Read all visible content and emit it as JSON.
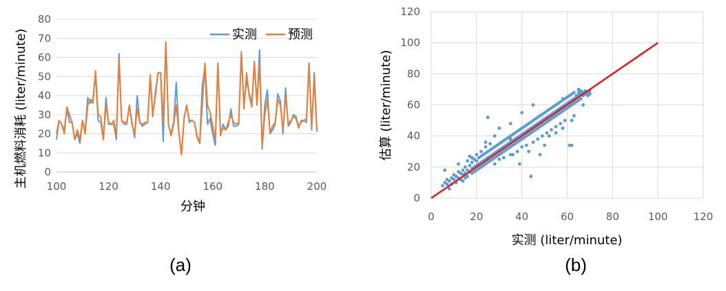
{
  "chart_data": [
    {
      "type": "line",
      "caption": "(a)",
      "xlabel": "分钟",
      "ylabel": "主机燃料消耗  (liter/minute)",
      "xlim": [
        100,
        200
      ],
      "ylim": [
        0,
        80
      ],
      "xticks": [
        100,
        120,
        140,
        160,
        180,
        200
      ],
      "yticks": [
        0,
        10,
        20,
        30,
        40,
        50,
        60,
        70,
        80
      ],
      "legend_position": "top-right",
      "grid": "horizontal",
      "x": [
        100,
        101,
        102,
        103,
        104,
        105,
        106,
        107,
        108,
        109,
        110,
        111,
        112,
        113,
        114,
        115,
        116,
        117,
        118,
        119,
        120,
        121,
        122,
        123,
        124,
        125,
        126,
        127,
        128,
        129,
        130,
        131,
        132,
        133,
        134,
        135,
        136,
        137,
        138,
        139,
        140,
        141,
        142,
        143,
        144,
        145,
        146,
        147,
        148,
        149,
        150,
        151,
        152,
        153,
        154,
        155,
        156,
        157,
        158,
        159,
        160,
        161,
        162,
        163,
        164,
        165,
        166,
        167,
        168,
        169,
        170,
        171,
        172,
        173,
        174,
        175,
        176,
        177,
        178,
        179,
        180,
        181,
        182,
        183,
        184,
        185,
        186,
        187,
        188,
        189,
        190,
        191,
        192,
        193,
        194,
        195,
        196,
        197,
        198,
        199,
        200
      ],
      "series": [
        {
          "name": "实测",
          "color": "#5B9BD5",
          "values": [
            17,
            27,
            25,
            22,
            33,
            26,
            26,
            17,
            20,
            15,
            27,
            21,
            39,
            36,
            38,
            51,
            27,
            26,
            17,
            39,
            25,
            25,
            25,
            17,
            62,
            27,
            25,
            25,
            35,
            26,
            18,
            40,
            26,
            24,
            25,
            26,
            49,
            29,
            42,
            52,
            52,
            16,
            68,
            25,
            20,
            26,
            47,
            21,
            9,
            28,
            35,
            26,
            27,
            26,
            18,
            15,
            45,
            55,
            25,
            28,
            20,
            14,
            57,
            19,
            25,
            22,
            24,
            33,
            24,
            24,
            25,
            63,
            35,
            48,
            41,
            36,
            58,
            35,
            64,
            12,
            35,
            43,
            20,
            22,
            25,
            41,
            37,
            20,
            44,
            24,
            26,
            30,
            29,
            24,
            26,
            27,
            26,
            57,
            22,
            52,
            22
          ]
        },
        {
          "name": "预测",
          "color": "#ED7D31",
          "values": [
            20,
            27,
            25,
            20,
            34,
            30,
            26,
            17,
            22,
            17,
            27,
            20,
            35,
            38,
            36,
            53,
            30,
            29,
            17,
            35,
            26,
            25,
            27,
            19,
            59,
            27,
            26,
            26,
            35,
            25,
            20,
            33,
            26,
            25,
            26,
            26,
            51,
            30,
            40,
            52,
            52,
            26,
            68,
            25,
            19,
            25,
            35,
            21,
            9,
            28,
            35,
            27,
            27,
            26,
            19,
            15,
            35,
            57,
            35,
            31,
            24,
            17,
            57,
            20,
            23,
            22,
            26,
            30,
            26,
            25,
            26,
            62,
            33,
            52,
            40,
            34,
            57,
            36,
            57,
            13,
            30,
            38,
            21,
            24,
            26,
            38,
            35,
            22,
            40,
            25,
            27,
            29,
            28,
            23,
            27,
            27,
            28,
            57,
            24,
            49,
            21
          ]
        }
      ]
    },
    {
      "type": "scatter",
      "caption": "(b)",
      "xlabel": "实测  (liter/minute)",
      "ylabel": "估算  (liter/minute)",
      "xlim": [
        0,
        120
      ],
      "ylim": [
        0,
        120
      ],
      "xticks": [
        0,
        20,
        40,
        60,
        80,
        100,
        120
      ],
      "yticks": [
        0,
        20,
        40,
        60,
        80,
        100,
        120
      ],
      "grid": "both",
      "point_color": "#5B9BD5",
      "reference_line": {
        "x": [
          0,
          100
        ],
        "y": [
          0,
          100
        ],
        "color": "#E31A1C"
      },
      "points": [
        [
          5,
          8
        ],
        [
          6,
          10
        ],
        [
          6,
          18
        ],
        [
          7,
          9
        ],
        [
          7,
          12
        ],
        [
          8,
          11
        ],
        [
          8,
          6
        ],
        [
          9,
          13
        ],
        [
          9,
          9
        ],
        [
          10,
          12
        ],
        [
          10,
          15
        ],
        [
          11,
          10
        ],
        [
          11,
          14
        ],
        [
          12,
          13
        ],
        [
          12,
          17
        ],
        [
          12,
          22
        ],
        [
          13,
          12
        ],
        [
          13,
          16
        ],
        [
          14,
          15
        ],
        [
          14,
          18
        ],
        [
          14,
          11
        ],
        [
          15,
          16
        ],
        [
          15,
          20
        ],
        [
          15,
          13
        ],
        [
          16,
          18
        ],
        [
          16,
          24
        ],
        [
          16,
          14
        ],
        [
          17,
          17
        ],
        [
          17,
          21
        ],
        [
          17,
          27
        ],
        [
          18,
          19
        ],
        [
          18,
          23
        ],
        [
          18,
          16
        ],
        [
          19,
          20
        ],
        [
          19,
          25
        ],
        [
          19,
          17
        ],
        [
          20,
          21
        ],
        [
          20,
          24
        ],
        [
          20,
          28
        ],
        [
          20,
          18
        ],
        [
          21,
          22
        ],
        [
          21,
          26
        ],
        [
          21,
          19
        ],
        [
          22,
          23
        ],
        [
          22,
          27
        ],
        [
          22,
          20
        ],
        [
          22,
          30
        ],
        [
          23,
          24
        ],
        [
          23,
          28
        ],
        [
          23,
          21
        ],
        [
          24,
          25
        ],
        [
          24,
          29
        ],
        [
          24,
          22
        ],
        [
          24,
          33
        ],
        [
          25,
          26
        ],
        [
          25,
          30
        ],
        [
          25,
          23
        ],
        [
          25,
          52
        ],
        [
          26,
          27
        ],
        [
          26,
          31
        ],
        [
          26,
          24
        ],
        [
          26,
          35
        ],
        [
          27,
          28
        ],
        [
          27,
          32
        ],
        [
          27,
          25
        ],
        [
          28,
          29
        ],
        [
          28,
          33
        ],
        [
          28,
          26
        ],
        [
          28,
          22
        ],
        [
          29,
          30
        ],
        [
          29,
          34
        ],
        [
          29,
          27
        ],
        [
          30,
          31
        ],
        [
          30,
          35
        ],
        [
          30,
          28
        ],
        [
          30,
          25
        ],
        [
          31,
          32
        ],
        [
          31,
          36
        ],
        [
          31,
          29
        ],
        [
          32,
          33
        ],
        [
          32,
          37
        ],
        [
          32,
          30
        ],
        [
          32,
          26
        ],
        [
          33,
          34
        ],
        [
          33,
          38
        ],
        [
          33,
          31
        ],
        [
          34,
          35
        ],
        [
          34,
          39
        ],
        [
          34,
          32
        ],
        [
          35,
          36
        ],
        [
          35,
          40
        ],
        [
          35,
          33
        ],
        [
          35,
          28
        ],
        [
          36,
          37
        ],
        [
          36,
          41
        ],
        [
          36,
          34
        ],
        [
          37,
          38
        ],
        [
          37,
          42
        ],
        [
          37,
          35
        ],
        [
          38,
          39
        ],
        [
          38,
          43
        ],
        [
          38,
          36
        ],
        [
          38,
          30
        ],
        [
          39,
          40
        ],
        [
          39,
          44
        ],
        [
          39,
          37
        ],
        [
          40,
          41
        ],
        [
          40,
          45
        ],
        [
          40,
          38
        ],
        [
          40,
          33
        ],
        [
          41,
          42
        ],
        [
          41,
          46
        ],
        [
          41,
          39
        ],
        [
          42,
          43
        ],
        [
          42,
          47
        ],
        [
          42,
          40
        ],
        [
          42,
          34
        ],
        [
          43,
          44
        ],
        [
          43,
          48
        ],
        [
          43,
          41
        ],
        [
          44,
          45
        ],
        [
          44,
          49
        ],
        [
          44,
          42
        ],
        [
          44,
          14
        ],
        [
          45,
          46
        ],
        [
          45,
          50
        ],
        [
          45,
          43
        ],
        [
          45,
          36
        ],
        [
          46,
          47
        ],
        [
          46,
          51
        ],
        [
          46,
          44
        ],
        [
          47,
          48
        ],
        [
          47,
          52
        ],
        [
          47,
          45
        ],
        [
          47,
          38
        ],
        [
          48,
          49
        ],
        [
          48,
          53
        ],
        [
          48,
          46
        ],
        [
          49,
          50
        ],
        [
          49,
          54
        ],
        [
          49,
          47
        ],
        [
          49,
          40
        ],
        [
          50,
          51
        ],
        [
          50,
          55
        ],
        [
          50,
          48
        ],
        [
          51,
          52
        ],
        [
          51,
          56
        ],
        [
          51,
          49
        ],
        [
          51,
          42
        ],
        [
          52,
          53
        ],
        [
          52,
          57
        ],
        [
          52,
          50
        ],
        [
          53,
          54
        ],
        [
          53,
          58
        ],
        [
          53,
          51
        ],
        [
          53,
          44
        ],
        [
          54,
          55
        ],
        [
          54,
          59
        ],
        [
          54,
          52
        ],
        [
          55,
          56
        ],
        [
          55,
          60
        ],
        [
          55,
          53
        ],
        [
          55,
          46
        ],
        [
          56,
          57
        ],
        [
          56,
          61
        ],
        [
          56,
          54
        ],
        [
          57,
          58
        ],
        [
          57,
          62
        ],
        [
          57,
          55
        ],
        [
          57,
          48
        ],
        [
          58,
          59
        ],
        [
          58,
          63
        ],
        [
          58,
          56
        ],
        [
          59,
          60
        ],
        [
          59,
          64
        ],
        [
          59,
          57
        ],
        [
          59,
          50
        ],
        [
          60,
          61
        ],
        [
          60,
          65
        ],
        [
          60,
          58
        ],
        [
          61,
          62
        ],
        [
          61,
          66
        ],
        [
          61,
          59
        ],
        [
          61,
          34
        ],
        [
          62,
          63
        ],
        [
          62,
          67
        ],
        [
          62,
          60
        ],
        [
          63,
          64
        ],
        [
          63,
          68
        ],
        [
          63,
          61
        ],
        [
          63,
          53
        ],
        [
          64,
          65
        ],
        [
          64,
          66
        ],
        [
          64,
          62
        ],
        [
          65,
          66
        ],
        [
          65,
          68
        ],
        [
          65,
          63
        ],
        [
          66,
          67
        ],
        [
          66,
          69
        ],
        [
          66,
          64
        ],
        [
          67,
          68
        ],
        [
          67,
          66
        ],
        [
          67,
          60
        ],
        [
          68,
          69
        ],
        [
          68,
          67
        ],
        [
          69,
          68
        ],
        [
          69,
          66
        ],
        [
          70,
          69
        ],
        [
          70,
          67
        ],
        [
          50,
          34
        ],
        [
          52,
          40
        ],
        [
          48,
          28
        ],
        [
          55,
          42
        ],
        [
          43,
          30
        ],
        [
          39,
          22
        ],
        [
          36,
          28
        ],
        [
          58,
          45
        ],
        [
          62,
          50
        ],
        [
          45,
          60
        ],
        [
          40,
          55
        ],
        [
          30,
          45
        ],
        [
          28,
          40
        ],
        [
          35,
          48
        ],
        [
          24,
          36
        ],
        [
          18,
          26
        ],
        [
          62,
          34
        ],
        [
          35,
          38
        ],
        [
          65,
          70
        ],
        [
          58,
          64
        ]
      ]
    }
  ]
}
